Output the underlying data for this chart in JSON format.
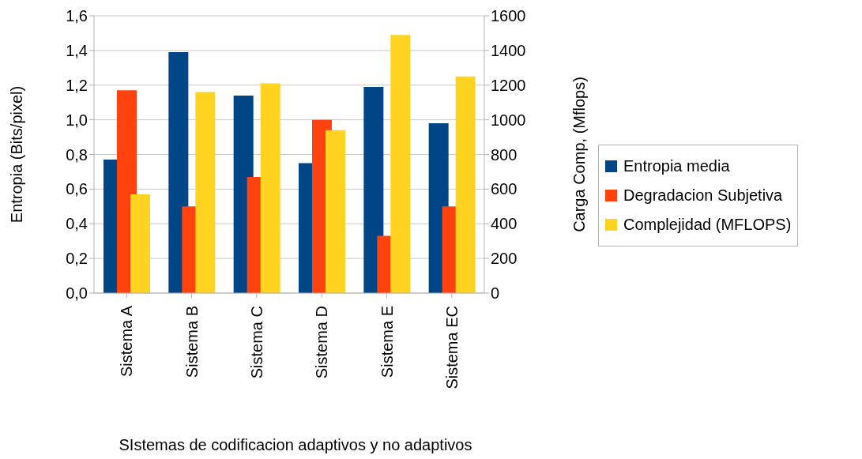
{
  "chart_data": {
    "type": "bar",
    "xlabel": "SIstemas de codificacion adaptivos y no adaptivos",
    "ylabel": "Entropia (Bits/pixel)",
    "y2label": "Carga Comp, (Mflops)",
    "categories": [
      "Sistema A",
      "Sistema B",
      "Sistema C",
      "Sistema D",
      "Sistema E",
      "Sistema EC"
    ],
    "series": [
      {
        "name": "Entropia media",
        "color": "#004586",
        "values": [
          0.77,
          1.39,
          1.14,
          0.75,
          1.19,
          0.98
        ]
      },
      {
        "name": "Degradacion Subjetiva",
        "color": "#ff420e",
        "values": [
          1.17,
          0.5,
          0.67,
          1.0,
          0.33,
          0.5
        ]
      },
      {
        "name": "Complejidad (MFLOPS)",
        "color": "#ffd320",
        "axis": "y2",
        "values": [
          570,
          1160,
          1210,
          940,
          1490,
          1250
        ]
      }
    ],
    "ylim": [
      0,
      1.6
    ],
    "yticks": [
      {
        "value": 0,
        "label": "0,0"
      },
      {
        "value": 0.2,
        "label": "0,2"
      },
      {
        "value": 0.4,
        "label": "0,4"
      },
      {
        "value": 0.6,
        "label": "0,6"
      },
      {
        "value": 0.8,
        "label": "0,8"
      },
      {
        "value": 1.0,
        "label": "1,0"
      },
      {
        "value": 1.2,
        "label": "1,2"
      },
      {
        "value": 1.4,
        "label": "1,4"
      },
      {
        "value": 1.6,
        "label": "1,6"
      }
    ],
    "y2lim": [
      0,
      1600
    ],
    "y2ticks": [
      0,
      200,
      400,
      600,
      800,
      1000,
      1200,
      1400,
      1600
    ],
    "grid": "y",
    "legend": "right"
  }
}
